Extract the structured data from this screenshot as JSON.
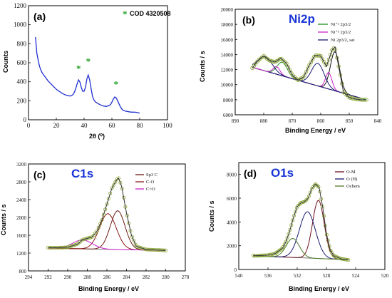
{
  "colors": {
    "blue": "#1f2fd0",
    "green": "#228b22",
    "marker": "#8aa832",
    "cyan": "#19c3d2",
    "magenta": "#cc22cc",
    "navy": "#1a1a6e",
    "brown": "#6b1a12",
    "maroon": "#6b0f1a",
    "star": "#1e9e1e",
    "title": "#1a35d8",
    "olive": "#4e7d2a"
  },
  "chart_data": [
    {
      "panel": "(a)",
      "type": "line",
      "xlabel": "2θ (⁰)",
      "ylabel": "Counts",
      "xlim": [
        0,
        100
      ],
      "ylim": [
        0,
        1200
      ],
      "xticks": [
        0,
        20,
        40,
        60,
        80,
        100
      ],
      "yticks": [
        0,
        200,
        400,
        600,
        800,
        1000,
        1200
      ],
      "legend": "COD 4320508",
      "markers": [
        {
          "x": 36,
          "y": 505
        },
        {
          "x": 43,
          "y": 580
        },
        {
          "x": 63,
          "y": 340
        }
      ],
      "series": [
        {
          "x": [
            5,
            6,
            7,
            8,
            9,
            10,
            12,
            14,
            16,
            18,
            20,
            22,
            24,
            26,
            28,
            30,
            31,
            32,
            33,
            34,
            35,
            36,
            37,
            38,
            39,
            40,
            41,
            42,
            43,
            44,
            45,
            46,
            47,
            48,
            50,
            52,
            54,
            56,
            58,
            59,
            60,
            61,
            62,
            63,
            64,
            65,
            66,
            67,
            68,
            70,
            72,
            74,
            76,
            78,
            80
          ],
          "y": [
            870,
            700,
            620,
            560,
            520,
            490,
            450,
            410,
            380,
            350,
            320,
            300,
            280,
            265,
            255,
            250,
            255,
            265,
            290,
            330,
            380,
            420,
            395,
            340,
            300,
            300,
            340,
            430,
            470,
            420,
            330,
            250,
            210,
            190,
            170,
            155,
            145,
            140,
            150,
            160,
            185,
            215,
            240,
            232,
            205,
            170,
            140,
            115,
            100,
            90,
            85,
            80,
            80,
            78,
            70
          ]
        }
      ]
    },
    {
      "panel": "(b)",
      "title": "Ni2p",
      "type": "line",
      "xlabel": "Binding Energy / eV",
      "ylabel": "Counts / s",
      "xlim": [
        890,
        840
      ],
      "ylim": [
        6000,
        20000
      ],
      "xticks": [
        890,
        880,
        870,
        860,
        850,
        840
      ],
      "yticks": [
        6000,
        8000,
        10000,
        12000,
        14000,
        16000,
        18000,
        20000
      ],
      "legend": [
        "Ni⁺² 2p3/2",
        "Ni⁺³ 2p3/2",
        "Ni 2p3/2, sat"
      ],
      "series": [
        {
          "role": "data",
          "x": [
            884,
            882,
            880,
            878,
            876,
            874,
            872,
            870,
            868,
            866,
            864,
            862,
            860,
            858,
            856,
            855,
            854,
            852,
            850,
            848,
            846,
            844
          ],
          "y": [
            12200,
            13200,
            13800,
            13200,
            13000,
            13500,
            12800,
            11300,
            10600,
            11000,
            12600,
            13900,
            13800,
            12400,
            14600,
            15000,
            13000,
            9000,
            8300,
            8100,
            8000,
            8000
          ]
        },
        {
          "role": "background",
          "x": [
            884,
            844
          ],
          "y": [
            12300,
            8000
          ]
        }
      ]
    },
    {
      "panel": "(c)",
      "title": "C1s",
      "type": "line",
      "xlabel": "Binding Energy / eV",
      "ylabel": "Counts / s",
      "xlim": [
        294,
        278
      ],
      "ylim": [
        800,
        3200
      ],
      "xticks": [
        294,
        292,
        290,
        288,
        286,
        284,
        282,
        280,
        278
      ],
      "yticks": [
        800,
        1200,
        1600,
        2000,
        2400,
        2800,
        3200
      ],
      "legend": [
        "Sp3 C",
        "C-O",
        "C=O"
      ],
      "series": [
        {
          "role": "data",
          "x": [
            292,
            291,
            290,
            289,
            288.5,
            288,
            287.5,
            287,
            286.5,
            286,
            285.5,
            285,
            284.8,
            284.5,
            284,
            283.5,
            283,
            282,
            281,
            280
          ],
          "y": [
            1320,
            1320,
            1330,
            1400,
            1500,
            1530,
            1560,
            1700,
            1950,
            2300,
            2650,
            2850,
            2880,
            2700,
            2100,
            1600,
            1350,
            1280,
            1270,
            1260
          ]
        },
        {
          "role": "background",
          "x": [
            292,
            280
          ],
          "y": [
            1310,
            1260
          ]
        }
      ]
    },
    {
      "panel": "(d)",
      "title": "O1s",
      "type": "line",
      "xlabel": "Binding Energy / eV",
      "ylabel": "Counts / s",
      "xlim": [
        540,
        520
      ],
      "ylim": [
        0,
        9000
      ],
      "xticks": [
        540,
        536,
        532,
        528,
        524,
        520
      ],
      "yticks": [
        0,
        2000,
        4000,
        6000,
        8000
      ],
      "legend": [
        "O-M",
        "O (H)",
        "Ochem"
      ],
      "series": [
        {
          "role": "data",
          "x": [
            538,
            536,
            535,
            534,
            533.5,
            533,
            532.5,
            532,
            531.5,
            531,
            530.5,
            530,
            529.5,
            529,
            528.5,
            528,
            527.5,
            527,
            526,
            525
          ],
          "y": [
            1150,
            1200,
            1350,
            1800,
            2400,
            3300,
            4400,
            5300,
            5600,
            5700,
            6000,
            6800,
            7200,
            6900,
            5200,
            3000,
            1700,
            1150,
            900,
            800
          ]
        },
        {
          "role": "background",
          "x": [
            538,
            525
          ],
          "y": [
            1150,
            820
          ]
        }
      ]
    }
  ]
}
